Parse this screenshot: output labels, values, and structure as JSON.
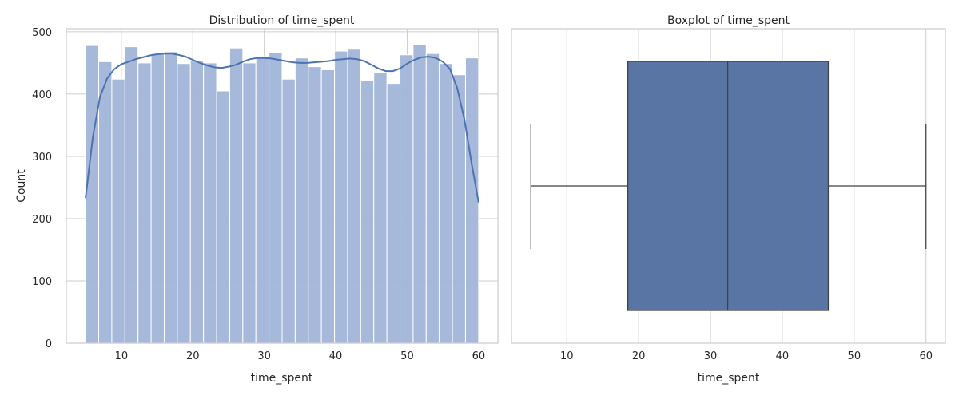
{
  "chart_data": [
    {
      "type": "histogram",
      "title": "Distribution of time_spent",
      "xlabel": "time_spent",
      "ylabel": "Count",
      "xlim": [
        2.3,
        62.7
      ],
      "ylim": [
        0,
        505
      ],
      "xticks": [
        10,
        20,
        30,
        40,
        50,
        60
      ],
      "yticks": [
        0,
        100,
        200,
        300,
        400,
        500
      ],
      "grid": true,
      "bar_color": "#a2b5d9",
      "kde_color": "#4c72b0",
      "bins": [
        {
          "start": 5.0,
          "end": 6.833,
          "count": 478
        },
        {
          "start": 6.833,
          "end": 8.667,
          "count": 452
        },
        {
          "start": 8.667,
          "end": 10.5,
          "count": 424
        },
        {
          "start": 10.5,
          "end": 12.333,
          "count": 476
        },
        {
          "start": 12.333,
          "end": 14.167,
          "count": 450
        },
        {
          "start": 14.167,
          "end": 16.0,
          "count": 465
        },
        {
          "start": 16.0,
          "end": 17.833,
          "count": 468
        },
        {
          "start": 17.833,
          "end": 19.667,
          "count": 449
        },
        {
          "start": 19.667,
          "end": 21.5,
          "count": 453
        },
        {
          "start": 21.5,
          "end": 23.333,
          "count": 450
        },
        {
          "start": 23.333,
          "end": 25.167,
          "count": 405
        },
        {
          "start": 25.167,
          "end": 27.0,
          "count": 474
        },
        {
          "start": 27.0,
          "end": 28.833,
          "count": 450
        },
        {
          "start": 28.833,
          "end": 30.667,
          "count": 460
        },
        {
          "start": 30.667,
          "end": 32.5,
          "count": 466
        },
        {
          "start": 32.5,
          "end": 34.333,
          "count": 424
        },
        {
          "start": 34.333,
          "end": 36.167,
          "count": 458
        },
        {
          "start": 36.167,
          "end": 38.0,
          "count": 444
        },
        {
          "start": 38.0,
          "end": 39.833,
          "count": 439
        },
        {
          "start": 39.833,
          "end": 41.667,
          "count": 469
        },
        {
          "start": 41.667,
          "end": 43.5,
          "count": 472
        },
        {
          "start": 43.5,
          "end": 45.333,
          "count": 422
        },
        {
          "start": 45.333,
          "end": 47.167,
          "count": 434
        },
        {
          "start": 47.167,
          "end": 49.0,
          "count": 417
        },
        {
          "start": 49.0,
          "end": 50.833,
          "count": 463
        },
        {
          "start": 50.833,
          "end": 52.667,
          "count": 480
        },
        {
          "start": 52.667,
          "end": 54.5,
          "count": 465
        },
        {
          "start": 54.5,
          "end": 56.333,
          "count": 449
        },
        {
          "start": 56.333,
          "end": 58.167,
          "count": 431
        },
        {
          "start": 58.167,
          "end": 60.0,
          "count": 458
        }
      ],
      "kde": {
        "x": [
          5,
          6,
          7,
          8,
          9,
          10,
          11,
          12,
          13,
          14,
          15,
          16,
          17,
          18,
          19,
          20,
          21,
          22,
          23,
          24,
          25,
          26,
          27,
          28,
          29,
          30,
          31,
          32,
          33,
          34,
          35,
          36,
          37,
          38,
          39,
          40,
          41,
          42,
          43,
          44,
          45,
          46,
          47,
          48,
          49,
          50,
          51,
          52,
          53,
          54,
          55,
          56,
          57,
          58,
          59,
          60
        ],
        "y": [
          233,
          330,
          395,
          425,
          440,
          448,
          452,
          456,
          459,
          462,
          464,
          465,
          465,
          463,
          460,
          455,
          450,
          446,
          443,
          442,
          444,
          447,
          452,
          456,
          458,
          458,
          457,
          455,
          453,
          451,
          450,
          450,
          451,
          452,
          453,
          455,
          456,
          457,
          456,
          453,
          447,
          441,
          437,
          437,
          441,
          449,
          455,
          459,
          460,
          458,
          452,
          440,
          410,
          360,
          290,
          226
        ]
      }
    },
    {
      "type": "box",
      "title": "Boxplot of time_spent",
      "xlabel": "time_spent",
      "xlim": [
        2.3,
        62.7
      ],
      "xticks": [
        10,
        20,
        30,
        40,
        50,
        60
      ],
      "grid": true,
      "box_color": "#5975a4",
      "line_color": "#404040",
      "stats": {
        "whislo": 5.0,
        "q1": 18.5,
        "median": 32.4,
        "q3": 46.4,
        "whishi": 60.0
      }
    }
  ]
}
